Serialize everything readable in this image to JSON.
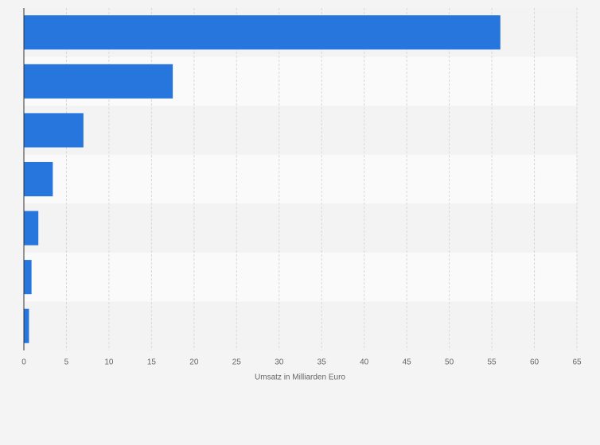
{
  "chart_data": {
    "type": "barh",
    "categories": [
      null,
      null,
      null,
      null,
      null,
      null,
      null
    ],
    "values": [
      56,
      17.5,
      7,
      3.4,
      1.7,
      0.9,
      0.6
    ],
    "color": "#2776dd",
    "x_label": "Umsatz in Milliarden Euro",
    "xlim": [
      0,
      65
    ],
    "xticks": [
      0,
      5,
      10,
      15,
      20,
      25,
      30,
      35,
      40,
      45,
      50,
      55,
      60,
      65
    ],
    "grid": true
  }
}
